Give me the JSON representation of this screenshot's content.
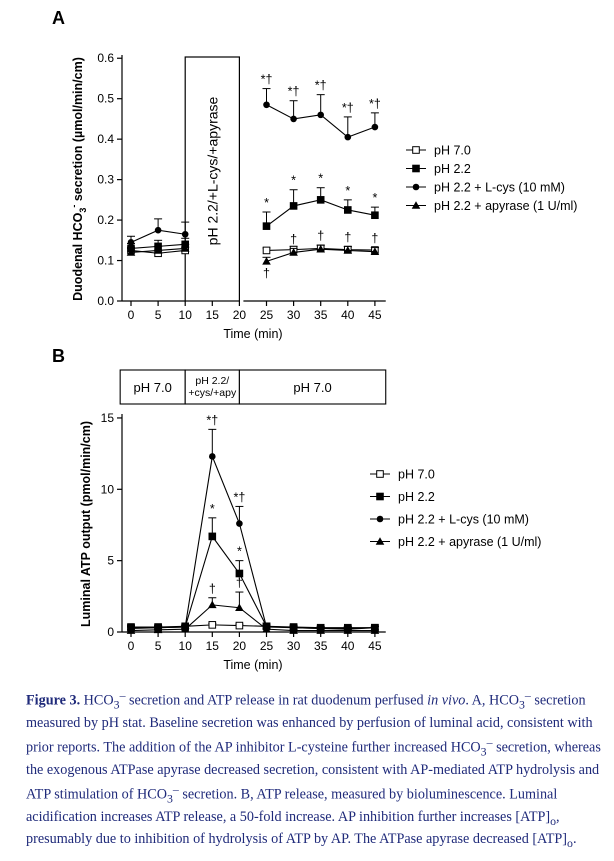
{
  "figure": {
    "panel_a_letter": "A",
    "panel_b_letter": "B"
  },
  "chart_data": [
    {
      "panel": "A",
      "type": "line",
      "xlabel": "Time (min)",
      "ylabel": "Duodenal HCO3- secretion (µmol/min/cm)",
      "xlim": [
        -2,
        47
      ],
      "ylim": [
        0,
        0.6
      ],
      "x_ticks": [
        0,
        5,
        10,
        15,
        20,
        25,
        30,
        35,
        40,
        45
      ],
      "y_ticks": [
        "0.0",
        "0.1",
        "0.2",
        "0.3",
        "0.4",
        "0.5",
        "0.6"
      ],
      "treatment_box_label": "pH 2.2/+L-cys/+apyrase",
      "treatment_range": [
        10,
        20
      ],
      "legend_position": "right",
      "series": [
        {
          "name": "pH 7.0",
          "marker": "open-square",
          "x": [
            0,
            5,
            10,
            25,
            30,
            35,
            40,
            45
          ],
          "y": [
            0.125,
            0.118,
            0.125,
            0.125,
            0.127,
            0.13,
            0.127,
            0.126
          ],
          "err": [
            0.008,
            0.006,
            0.008,
            0.006,
            0.008,
            0.008,
            0.007,
            0.006
          ],
          "annotations": []
        },
        {
          "name": "pH 2.2",
          "marker": "filled-square",
          "x": [
            0,
            5,
            10,
            25,
            30,
            35,
            40,
            45
          ],
          "y": [
            0.13,
            0.135,
            0.14,
            0.185,
            0.235,
            0.25,
            0.225,
            0.212
          ],
          "err": [
            0.012,
            0.015,
            0.015,
            0.035,
            0.04,
            0.03,
            0.025,
            0.02
          ],
          "annotations": [
            null,
            null,
            null,
            "*",
            "*",
            "*",
            "*",
            "*"
          ]
        },
        {
          "name": "pH 2.2 + L-cys (10 mM)",
          "marker": "filled-circle",
          "x": [
            0,
            5,
            10,
            25,
            30,
            35,
            40,
            45
          ],
          "y": [
            0.145,
            0.175,
            0.165,
            0.485,
            0.45,
            0.46,
            0.405,
            0.43
          ],
          "err": [
            0.015,
            0.028,
            0.03,
            0.04,
            0.045,
            0.05,
            0.05,
            0.035
          ],
          "annotations": [
            null,
            null,
            null,
            "*†",
            "*†",
            "*†",
            "*†",
            "*†"
          ]
        },
        {
          "name": "pH 2.2 + apyrase (1 U/ml)",
          "marker": "filled-triangle",
          "x": [
            0,
            5,
            10,
            25,
            30,
            35,
            40,
            45
          ],
          "y": [
            0.12,
            0.125,
            0.13,
            0.098,
            0.12,
            0.128,
            0.125,
            0.122
          ],
          "err": [
            0.01,
            0.01,
            0.01,
            0.01,
            0.01,
            0.01,
            0.01,
            0.01
          ],
          "annotations": [
            null,
            null,
            null,
            "†",
            "†",
            "†",
            "†",
            "†"
          ]
        }
      ]
    },
    {
      "panel": "B",
      "type": "line",
      "xlabel": "Time (min)",
      "ylabel": "Luminal ATP output (pmol/min/cm)",
      "xlim": [
        -2,
        47
      ],
      "ylim": [
        0,
        15
      ],
      "x_ticks": [
        0,
        5,
        10,
        15,
        20,
        25,
        30,
        35,
        40,
        45
      ],
      "y_ticks": [
        "0",
        "5",
        "10",
        "15"
      ],
      "condition_bar": [
        {
          "label": "pH 7.0",
          "from": -2,
          "to": 10
        },
        {
          "label": "pH 2.2/\n+cys/+apy",
          "from": 10,
          "to": 20
        },
        {
          "label": "pH 7.0",
          "from": 20,
          "to": 47
        }
      ],
      "legend_position": "right",
      "series": [
        {
          "name": "pH 7.0",
          "marker": "open-square",
          "x": [
            0,
            5,
            10,
            15,
            20,
            25,
            30,
            35,
            40,
            45
          ],
          "y": [
            0.35,
            0.35,
            0.4,
            0.5,
            0.45,
            0.4,
            0.35,
            0.3,
            0.3,
            0.3
          ],
          "err": [
            0.1,
            0.1,
            0.1,
            0.1,
            0.1,
            0.1,
            0.1,
            0.1,
            0.1,
            0.1
          ],
          "annotations": []
        },
        {
          "name": "pH 2.2",
          "marker": "filled-square",
          "x": [
            0,
            5,
            10,
            15,
            20,
            25,
            30,
            35,
            40,
            45
          ],
          "y": [
            0.3,
            0.3,
            0.35,
            6.7,
            4.1,
            0.4,
            0.3,
            0.25,
            0.25,
            0.3
          ],
          "err": [
            0.1,
            0.1,
            0.1,
            1.3,
            0.9,
            0.1,
            0.1,
            0.1,
            0.1,
            0.1
          ],
          "annotations": [
            null,
            null,
            null,
            "*",
            "*",
            null,
            null,
            null,
            null,
            null
          ]
        },
        {
          "name": "pH 2.2 + L-cys (10 mM)",
          "marker": "filled-circle",
          "x": [
            0,
            5,
            10,
            15,
            20,
            25,
            30,
            35,
            40,
            45
          ],
          "y": [
            0.25,
            0.3,
            0.35,
            12.3,
            7.6,
            0.35,
            0.3,
            0.25,
            0.2,
            0.3
          ],
          "err": [
            0.1,
            0.1,
            0.1,
            1.9,
            1.2,
            0.1,
            0.1,
            0.1,
            0.1,
            0.1
          ],
          "annotations": [
            null,
            null,
            null,
            "*†",
            "*†",
            null,
            null,
            null,
            null,
            null
          ]
        },
        {
          "name": "pH 2.2 + apyrase (1 U/ml)",
          "marker": "filled-triangle",
          "x": [
            0,
            5,
            10,
            15,
            20,
            25,
            30,
            35,
            40,
            45
          ],
          "y": [
            0.1,
            0.15,
            0.2,
            1.9,
            1.7,
            0.2,
            0.1,
            0.1,
            0.1,
            0.1
          ],
          "err": [
            0.05,
            0.05,
            0.05,
            0.5,
            1.1,
            0.05,
            0.05,
            0.05,
            0.05,
            0.05
          ],
          "annotations": [
            null,
            null,
            null,
            "†",
            "†",
            null,
            null,
            null,
            null,
            null
          ]
        }
      ]
    }
  ],
  "caption": {
    "label": "Figure 3.",
    "s1": "HCO",
    "s2": " secretion and ATP release in rat duodenum perfused ",
    "s3": "in vivo",
    "s4": ". A, HCO",
    "s5": " secretion measured by pH stat. Baseline secretion was enhanced by perfusion of luminal acid, consistent with prior reports. The addition of the AP inhibitor L-cysteine further increased HCO",
    "s6": " secretion, whereas the exogenous ATPase apyrase decreased secretion, consistent with AP-mediated ATP hydrolysis and ATP stimulation of HCO",
    "s7": " secretion.  B, ATP release, measured by bioluminescence. Luminal acidification increases ATP release, a 50-fold increase. AP inhibition further increases [ATP]",
    "s8": ", presumably due to inhibition of hydrolysis of ATP by AP. The ATPase apyrase decreased [ATP]",
    "s9": ".",
    "sub3": "3",
    "supminus": "–",
    "subo": "o"
  }
}
